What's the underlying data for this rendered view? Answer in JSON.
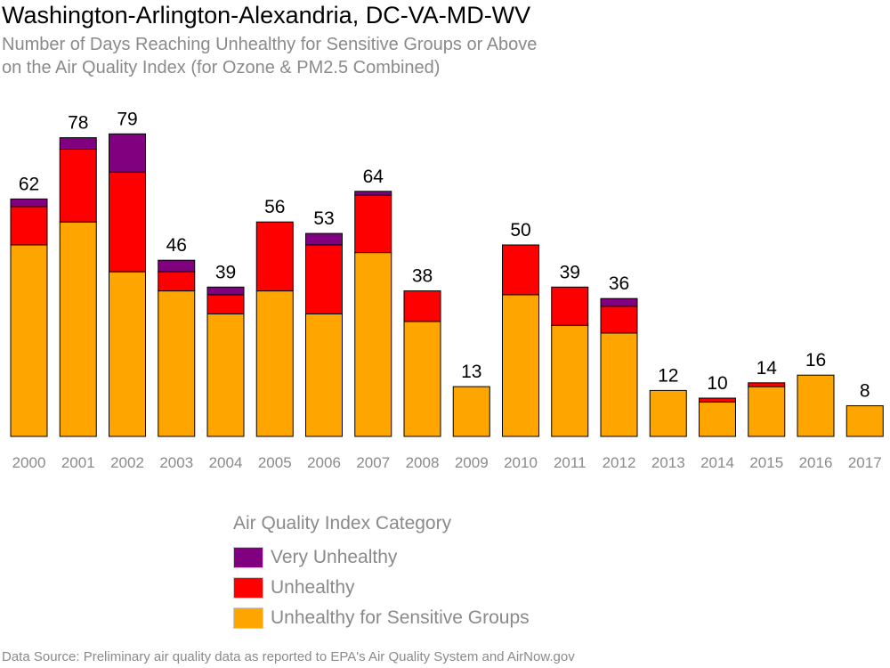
{
  "chart_data": {
    "type": "bar",
    "stacked": true,
    "title": "Washington-Arlington-Alexandria, DC-VA-MD-WV",
    "subtitle_lines": [
      "Number of Days Reaching Unhealthy for Sensitive Groups or Above",
      "on the Air Quality Index (for Ozone & PM2.5 Combined)"
    ],
    "categories": [
      "2000",
      "2001",
      "2002",
      "2003",
      "2004",
      "2005",
      "2006",
      "2007",
      "2008",
      "2009",
      "2010",
      "2011",
      "2012",
      "2013",
      "2014",
      "2015",
      "2016",
      "2017"
    ],
    "totals": [
      62,
      78,
      79,
      46,
      39,
      56,
      53,
      64,
      38,
      13,
      50,
      39,
      36,
      12,
      10,
      14,
      16,
      8
    ],
    "series": [
      {
        "name": "Unhealthy for Sensitive Groups",
        "color": "#FFA500",
        "values": [
          50,
          56,
          43,
          38,
          32,
          38,
          32,
          48,
          30,
          13,
          37,
          29,
          27,
          12,
          9,
          13,
          16,
          8
        ]
      },
      {
        "name": "Unhealthy",
        "color": "#FF0000",
        "values": [
          10,
          19,
          26,
          5,
          5,
          18,
          18,
          15,
          8,
          0,
          13,
          10,
          7,
          0,
          1,
          1,
          0,
          0
        ]
      },
      {
        "name": "Very Unhealthy",
        "color": "#800080",
        "values": [
          2,
          3,
          10,
          3,
          2,
          0,
          3,
          1,
          0,
          0,
          0,
          0,
          2,
          0,
          0,
          0,
          0,
          0
        ]
      }
    ],
    "ylim": [
      0,
      80
    ],
    "grid": false,
    "legend_position": "bottom-center",
    "legend_title": "Air Quality Index Category",
    "legend_order": [
      "Very Unhealthy",
      "Unhealthy",
      "Unhealthy for Sensitive Groups"
    ]
  },
  "footer": "Data Source: Preliminary air quality data as reported to EPA's Air Quality System and AirNow.gov"
}
